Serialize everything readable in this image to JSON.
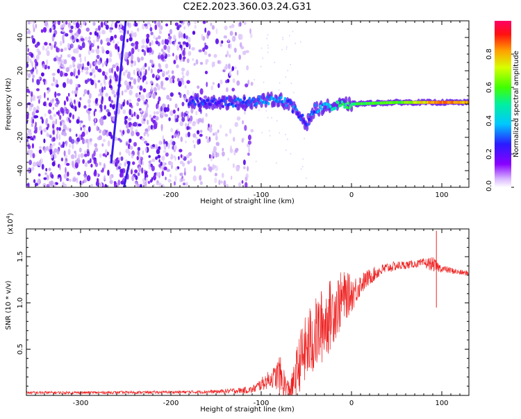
{
  "title": "C2E2.2023.360.03.24.G31",
  "colors": {
    "line": "#ee2222",
    "axis": "#000000",
    "spec_core": "#4400ee",
    "spec_light": "#c8a8f4"
  },
  "colorbar": {
    "label": "Normalized spectral amplitude",
    "ticks": [
      "0.0",
      "0.2",
      "0.4",
      "0.6",
      "0.8"
    ],
    "tick_values": [
      0.0,
      0.2,
      0.4,
      0.6,
      0.8
    ],
    "range": [
      0,
      1
    ]
  },
  "chart_data": [
    {
      "type": "heatmap",
      "title": "C2E2.2023.360.03.24.G31",
      "xlabel": "Height of straight line (km)",
      "ylabel": "Frequency (Hz)",
      "xlim": [
        -360,
        130
      ],
      "ylim": [
        -50,
        50
      ],
      "xticks": [
        -300,
        -200,
        -100,
        0,
        100
      ],
      "xtick_labels": [
        "-300",
        "-200",
        "-100",
        "0",
        "100"
      ],
      "yticks": [
        -40,
        -20,
        0,
        20,
        40
      ],
      "ytick_labels": [
        "-40",
        "-20",
        "0",
        "20",
        "40"
      ],
      "ridge": {
        "description": "Dominant spectral ridge near 0 Hz, high amplitude (red) for heights > 0 km",
        "x": [
          -180,
          -150,
          -120,
          -100,
          -80,
          -70,
          -60,
          -50,
          -40,
          -20,
          0,
          50,
          100,
          130
        ],
        "y": [
          2,
          1,
          1,
          2,
          3,
          0,
          -5,
          -12,
          -3,
          -1,
          0,
          1,
          1,
          1
        ],
        "amplitude": [
          0.25,
          0.25,
          0.3,
          0.35,
          0.35,
          0.3,
          0.3,
          0.25,
          0.3,
          0.45,
          0.55,
          0.6,
          0.85,
          0.8
        ]
      },
      "streaks": [
        {
          "x": [
            -266,
            -250
          ],
          "y": [
            -35,
            50
          ]
        },
        {
          "x": [
            -252,
            -246
          ],
          "y": [
            -50,
            -35
          ]
        }
      ]
    },
    {
      "type": "line",
      "xlabel": "Height of straight line (km)",
      "ylabel": "SNR (10 * v/v)",
      "yscale_label": "(x10",
      "yscale_exp": "4",
      "yscale_close": ")",
      "xlim": [
        -360,
        130
      ],
      "ylim": [
        0,
        18000
      ],
      "xticks": [
        -300,
        -200,
        -100,
        0,
        100
      ],
      "xtick_labels": [
        "-300",
        "-200",
        "-100",
        "0",
        "100"
      ],
      "yticks": [
        5000,
        10000,
        15000
      ],
      "ytick_labels": [
        "0.5",
        "1.0",
        "1.5"
      ],
      "series": [
        {
          "name": "SNR",
          "x": [
            -360,
            -300,
            -200,
            -150,
            -110,
            -100,
            -90,
            -85,
            -80,
            -75,
            -70,
            -65,
            -60,
            -55,
            -50,
            -45,
            -40,
            -35,
            -30,
            -25,
            -20,
            -15,
            -10,
            -5,
            0,
            5,
            10,
            20,
            30,
            40,
            50,
            60,
            70,
            80,
            90,
            95,
            100,
            110,
            120,
            130
          ],
          "y": [
            300,
            300,
            350,
            400,
            600,
            1200,
            1800,
            2000,
            2300,
            1200,
            500,
            1000,
            2800,
            4200,
            5000,
            5800,
            6500,
            7200,
            7800,
            8500,
            9200,
            9800,
            10500,
            10800,
            11000,
            11400,
            12000,
            12800,
            13400,
            13800,
            14000,
            14100,
            14200,
            14300,
            14200,
            13900,
            13700,
            13500,
            13300,
            13200
          ],
          "spread": [
            150,
            150,
            150,
            200,
            400,
            700,
            1000,
            1200,
            2200,
            2000,
            1200,
            1600,
            2800,
            3500,
            3800,
            4200,
            4000,
            4200,
            4000,
            4000,
            3600,
            3400,
            3000,
            2500,
            2000,
            1600,
            1200,
            900,
            700,
            600,
            500,
            450,
            400,
            500,
            800,
            600,
            400,
            350,
            300,
            300
          ],
          "spikes": [
            {
              "x": 94,
              "y": 17800
            },
            {
              "x": 94,
              "y": 9500
            }
          ]
        }
      ]
    }
  ]
}
